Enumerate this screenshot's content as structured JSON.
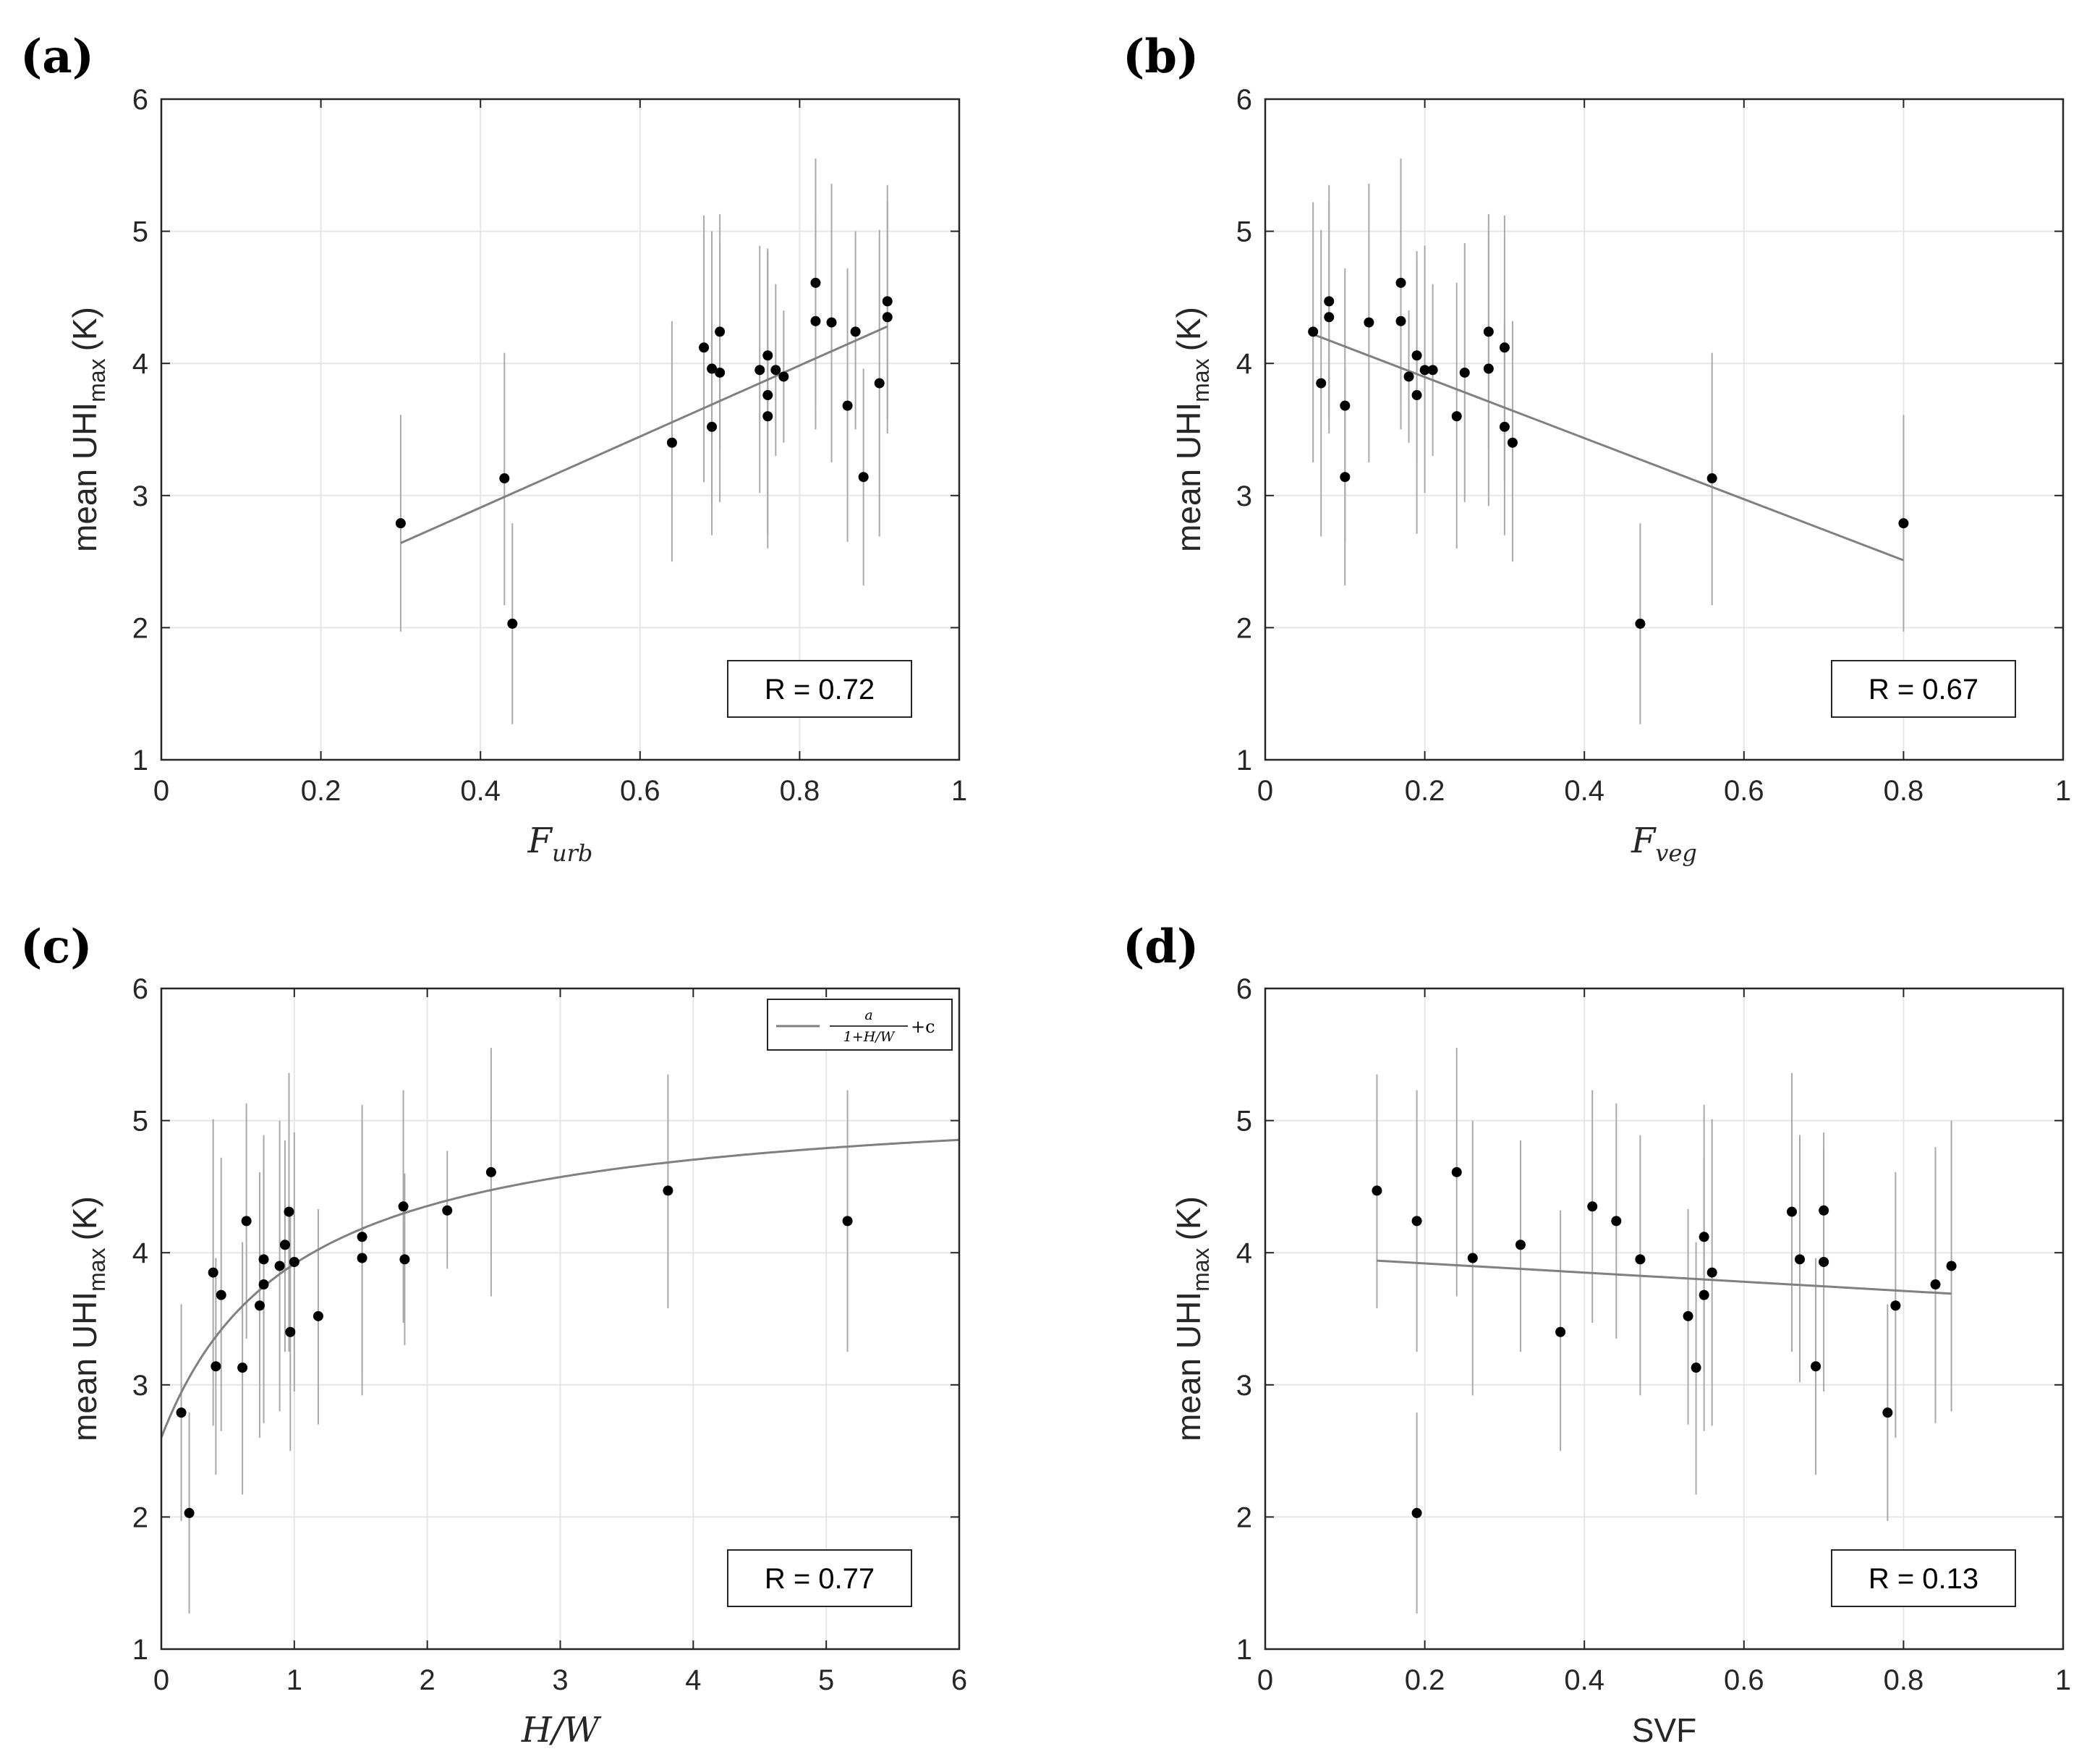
{
  "chart_data": [
    {
      "panel": "(a)",
      "type": "scatter",
      "xlabel_base": "F",
      "xlabel_sub": "urb",
      "ylabel_base": "mean UHI",
      "ylabel_sub": "max",
      "ylabel_unit": "(K)",
      "xlim": [
        0,
        1
      ],
      "ylim": [
        1,
        6
      ],
      "xticks": [
        "0",
        "0.2",
        "0.4",
        "0.6",
        "0.8",
        "1"
      ],
      "yticks": [
        "1",
        "2",
        "3",
        "4",
        "5",
        "6"
      ],
      "annotation": "R = 0.72",
      "fit": {
        "kind": "linear",
        "x": [
          0.3,
          0.91
        ],
        "y": [
          2.64,
          4.28
        ]
      },
      "points": [
        {
          "x": 0.3,
          "y": 2.79,
          "lo": 1.97,
          "hi": 3.61
        },
        {
          "x": 0.43,
          "y": 3.13,
          "lo": 2.17,
          "hi": 4.08
        },
        {
          "x": 0.44,
          "y": 2.03,
          "lo": 1.27,
          "hi": 2.79
        },
        {
          "x": 0.64,
          "y": 3.4,
          "lo": 2.5,
          "hi": 4.32
        },
        {
          "x": 0.68,
          "y": 4.12,
          "lo": 3.1,
          "hi": 5.12
        },
        {
          "x": 0.69,
          "y": 3.96,
          "lo": 2.92,
          "hi": 5.0
        },
        {
          "x": 0.69,
          "y": 3.52,
          "lo": 2.7,
          "hi": 4.33
        },
        {
          "x": 0.7,
          "y": 4.24,
          "lo": 3.35,
          "hi": 5.13
        },
        {
          "x": 0.7,
          "y": 3.93,
          "lo": 2.95,
          "hi": 4.91
        },
        {
          "x": 0.75,
          "y": 3.95,
          "lo": 3.02,
          "hi": 4.89
        },
        {
          "x": 0.76,
          "y": 3.6,
          "lo": 2.6,
          "hi": 4.87
        },
        {
          "x": 0.76,
          "y": 4.06,
          "lo": 3.25,
          "hi": 4.85
        },
        {
          "x": 0.76,
          "y": 3.76,
          "lo": 2.71,
          "hi": 4.75
        },
        {
          "x": 0.77,
          "y": 3.95,
          "lo": 3.3,
          "hi": 4.6
        },
        {
          "x": 0.78,
          "y": 3.9,
          "lo": 3.4,
          "hi": 4.4
        },
        {
          "x": 0.82,
          "y": 4.61,
          "lo": 3.67,
          "hi": 5.55
        },
        {
          "x": 0.82,
          "y": 4.32,
          "lo": 3.5,
          "hi": 5.13
        },
        {
          "x": 0.84,
          "y": 4.31,
          "lo": 3.25,
          "hi": 5.36
        },
        {
          "x": 0.86,
          "y": 3.68,
          "lo": 2.65,
          "hi": 4.72
        },
        {
          "x": 0.87,
          "y": 4.24,
          "lo": 3.5,
          "hi": 5.0
        },
        {
          "x": 0.88,
          "y": 3.14,
          "lo": 2.32,
          "hi": 3.96
        },
        {
          "x": 0.9,
          "y": 3.85,
          "lo": 2.69,
          "hi": 5.01
        },
        {
          "x": 0.91,
          "y": 4.47,
          "lo": 3.58,
          "hi": 5.35
        },
        {
          "x": 0.91,
          "y": 4.35,
          "lo": 3.47,
          "hi": 5.23
        }
      ]
    },
    {
      "panel": "(b)",
      "type": "scatter",
      "xlabel_base": "F",
      "xlabel_sub": "veg",
      "ylabel_base": "mean UHI",
      "ylabel_sub": "max",
      "ylabel_unit": "(K)",
      "xlim": [
        0,
        1
      ],
      "ylim": [
        1,
        6
      ],
      "xticks": [
        "0",
        "0.2",
        "0.4",
        "0.6",
        "0.8",
        "1"
      ],
      "yticks": [
        "1",
        "2",
        "3",
        "4",
        "5",
        "6"
      ],
      "annotation": "R = 0.67",
      "fit": {
        "kind": "linear",
        "x": [
          0.06,
          0.8
        ],
        "y": [
          4.22,
          2.51
        ]
      },
      "points": [
        {
          "x": 0.06,
          "y": 4.24,
          "lo": 3.25,
          "hi": 5.22
        },
        {
          "x": 0.07,
          "y": 3.85,
          "lo": 2.69,
          "hi": 5.01
        },
        {
          "x": 0.08,
          "y": 4.47,
          "lo": 3.58,
          "hi": 5.35
        },
        {
          "x": 0.08,
          "y": 4.35,
          "lo": 3.47,
          "hi": 5.23
        },
        {
          "x": 0.1,
          "y": 3.68,
          "lo": 2.65,
          "hi": 4.72
        },
        {
          "x": 0.1,
          "y": 3.14,
          "lo": 2.32,
          "hi": 3.96
        },
        {
          "x": 0.13,
          "y": 4.31,
          "lo": 3.25,
          "hi": 5.36
        },
        {
          "x": 0.17,
          "y": 4.61,
          "lo": 3.67,
          "hi": 5.55
        },
        {
          "x": 0.17,
          "y": 4.32,
          "lo": 3.5,
          "hi": 5.13
        },
        {
          "x": 0.18,
          "y": 3.9,
          "lo": 3.4,
          "hi": 4.4
        },
        {
          "x": 0.19,
          "y": 3.76,
          "lo": 2.71,
          "hi": 4.8
        },
        {
          "x": 0.19,
          "y": 4.06,
          "lo": 3.25,
          "hi": 4.85
        },
        {
          "x": 0.2,
          "y": 3.95,
          "lo": 3.02,
          "hi": 4.89
        },
        {
          "x": 0.21,
          "y": 3.95,
          "lo": 3.3,
          "hi": 4.6
        },
        {
          "x": 0.24,
          "y": 3.6,
          "lo": 2.6,
          "hi": 4.61
        },
        {
          "x": 0.25,
          "y": 3.93,
          "lo": 2.95,
          "hi": 4.91
        },
        {
          "x": 0.28,
          "y": 4.24,
          "lo": 3.35,
          "hi": 5.13
        },
        {
          "x": 0.28,
          "y": 3.96,
          "lo": 2.92,
          "hi": 5.0
        },
        {
          "x": 0.3,
          "y": 4.12,
          "lo": 3.1,
          "hi": 5.12
        },
        {
          "x": 0.3,
          "y": 3.52,
          "lo": 2.7,
          "hi": 4.33
        },
        {
          "x": 0.31,
          "y": 3.4,
          "lo": 2.5,
          "hi": 4.32
        },
        {
          "x": 0.47,
          "y": 2.03,
          "lo": 1.27,
          "hi": 2.79
        },
        {
          "x": 0.56,
          "y": 3.13,
          "lo": 2.17,
          "hi": 4.08
        },
        {
          "x": 0.8,
          "y": 2.79,
          "lo": 1.97,
          "hi": 3.61
        }
      ]
    },
    {
      "panel": "(c)",
      "type": "scatter",
      "xlabel_base": "H/W",
      "xlabel_sub": "",
      "ylabel_base": "mean UHI",
      "ylabel_sub": "max",
      "ylabel_unit": "(K)",
      "xlim": [
        0,
        6
      ],
      "ylim": [
        1,
        6
      ],
      "xticks": [
        "0",
        "1",
        "2",
        "3",
        "4",
        "5",
        "6"
      ],
      "yticks": [
        "1",
        "2",
        "3",
        "4",
        "5",
        "6"
      ],
      "annotation": "R = 0.77",
      "legend": {
        "numerator": "a",
        "denominator": "1+H/W",
        "suffix": "+c",
        "position": "top-right"
      },
      "fit": {
        "kind": "hyperbolic",
        "a": -2.63,
        "c": 5.23,
        "x0": 0,
        "x1": 6
      },
      "points": [
        {
          "x": 0.15,
          "y": 2.79,
          "lo": 1.97,
          "hi": 3.61
        },
        {
          "x": 0.21,
          "y": 2.03,
          "lo": 1.27,
          "hi": 2.79
        },
        {
          "x": 0.39,
          "y": 3.85,
          "lo": 2.69,
          "hi": 5.01
        },
        {
          "x": 0.41,
          "y": 3.14,
          "lo": 2.32,
          "hi": 3.96
        },
        {
          "x": 0.45,
          "y": 3.68,
          "lo": 2.65,
          "hi": 4.72
        },
        {
          "x": 0.61,
          "y": 3.13,
          "lo": 2.17,
          "hi": 4.08
        },
        {
          "x": 0.64,
          "y": 4.24,
          "lo": 3.35,
          "hi": 5.13
        },
        {
          "x": 0.74,
          "y": 3.6,
          "lo": 2.6,
          "hi": 4.61
        },
        {
          "x": 0.77,
          "y": 3.95,
          "lo": 3.02,
          "hi": 4.89
        },
        {
          "x": 0.77,
          "y": 3.76,
          "lo": 2.71,
          "hi": 4.8
        },
        {
          "x": 0.89,
          "y": 3.9,
          "lo": 2.8,
          "hi": 5.0
        },
        {
          "x": 0.93,
          "y": 4.06,
          "lo": 3.25,
          "hi": 4.85
        },
        {
          "x": 0.96,
          "y": 4.31,
          "lo": 3.25,
          "hi": 5.36
        },
        {
          "x": 0.97,
          "y": 3.4,
          "lo": 2.5,
          "hi": 4.32
        },
        {
          "x": 1.0,
          "y": 3.93,
          "lo": 2.95,
          "hi": 4.91
        },
        {
          "x": 1.18,
          "y": 3.52,
          "lo": 2.7,
          "hi": 4.33
        },
        {
          "x": 1.51,
          "y": 4.12,
          "lo": 3.1,
          "hi": 5.12
        },
        {
          "x": 1.51,
          "y": 3.96,
          "lo": 2.92,
          "hi": 5.0
        },
        {
          "x": 1.82,
          "y": 4.35,
          "lo": 3.47,
          "hi": 5.23
        },
        {
          "x": 1.83,
          "y": 3.95,
          "lo": 3.3,
          "hi": 4.6
        },
        {
          "x": 2.15,
          "y": 4.32,
          "lo": 3.88,
          "hi": 4.77
        },
        {
          "x": 2.48,
          "y": 4.61,
          "lo": 3.67,
          "hi": 5.55
        },
        {
          "x": 3.81,
          "y": 4.47,
          "lo": 3.58,
          "hi": 5.35
        },
        {
          "x": 5.16,
          "y": 4.24,
          "lo": 3.25,
          "hi": 5.23
        }
      ]
    },
    {
      "panel": "(d)",
      "type": "scatter",
      "xlabel_base": "SVF",
      "xlabel_sub": "",
      "ylabel_base": "mean UHI",
      "ylabel_sub": "max",
      "ylabel_unit": "(K)",
      "xlim": [
        0,
        1
      ],
      "ylim": [
        1,
        6
      ],
      "xticks": [
        "0",
        "0.2",
        "0.4",
        "0.6",
        "0.8",
        "1"
      ],
      "yticks": [
        "1",
        "2",
        "3",
        "4",
        "5",
        "6"
      ],
      "annotation": "R = 0.13",
      "fit": {
        "kind": "linear",
        "x": [
          0.14,
          0.86
        ],
        "y": [
          3.94,
          3.69
        ]
      },
      "points": [
        {
          "x": 0.14,
          "y": 4.47,
          "lo": 3.58,
          "hi": 5.35
        },
        {
          "x": 0.19,
          "y": 2.03,
          "lo": 1.27,
          "hi": 2.79
        },
        {
          "x": 0.19,
          "y": 4.24,
          "lo": 3.25,
          "hi": 5.23
        },
        {
          "x": 0.24,
          "y": 4.61,
          "lo": 3.67,
          "hi": 5.55
        },
        {
          "x": 0.26,
          "y": 3.96,
          "lo": 2.92,
          "hi": 5.0
        },
        {
          "x": 0.32,
          "y": 4.06,
          "lo": 3.25,
          "hi": 4.85
        },
        {
          "x": 0.37,
          "y": 3.4,
          "lo": 2.5,
          "hi": 4.32
        },
        {
          "x": 0.41,
          "y": 4.35,
          "lo": 3.47,
          "hi": 5.23
        },
        {
          "x": 0.44,
          "y": 4.24,
          "lo": 3.35,
          "hi": 5.13
        },
        {
          "x": 0.47,
          "y": 3.95,
          "lo": 2.92,
          "hi": 4.89
        },
        {
          "x": 0.53,
          "y": 3.52,
          "lo": 2.7,
          "hi": 4.33
        },
        {
          "x": 0.54,
          "y": 3.13,
          "lo": 2.17,
          "hi": 4.08
        },
        {
          "x": 0.55,
          "y": 4.12,
          "lo": 3.1,
          "hi": 5.12
        },
        {
          "x": 0.56,
          "y": 3.85,
          "lo": 2.69,
          "hi": 5.01
        },
        {
          "x": 0.55,
          "y": 3.68,
          "lo": 2.65,
          "hi": 4.72
        },
        {
          "x": 0.66,
          "y": 4.31,
          "lo": 3.25,
          "hi": 5.36
        },
        {
          "x": 0.67,
          "y": 3.95,
          "lo": 3.02,
          "hi": 4.89
        },
        {
          "x": 0.69,
          "y": 3.14,
          "lo": 2.32,
          "hi": 3.96
        },
        {
          "x": 0.7,
          "y": 3.93,
          "lo": 2.95,
          "hi": 4.91
        },
        {
          "x": 0.7,
          "y": 4.32,
          "lo": 3.75,
          "hi": 4.77
        },
        {
          "x": 0.78,
          "y": 2.79,
          "lo": 1.97,
          "hi": 3.61
        },
        {
          "x": 0.79,
          "y": 3.6,
          "lo": 2.6,
          "hi": 4.61
        },
        {
          "x": 0.84,
          "y": 3.76,
          "lo": 2.71,
          "hi": 4.8
        },
        {
          "x": 0.86,
          "y": 3.9,
          "lo": 2.8,
          "hi": 5.0
        }
      ]
    }
  ]
}
